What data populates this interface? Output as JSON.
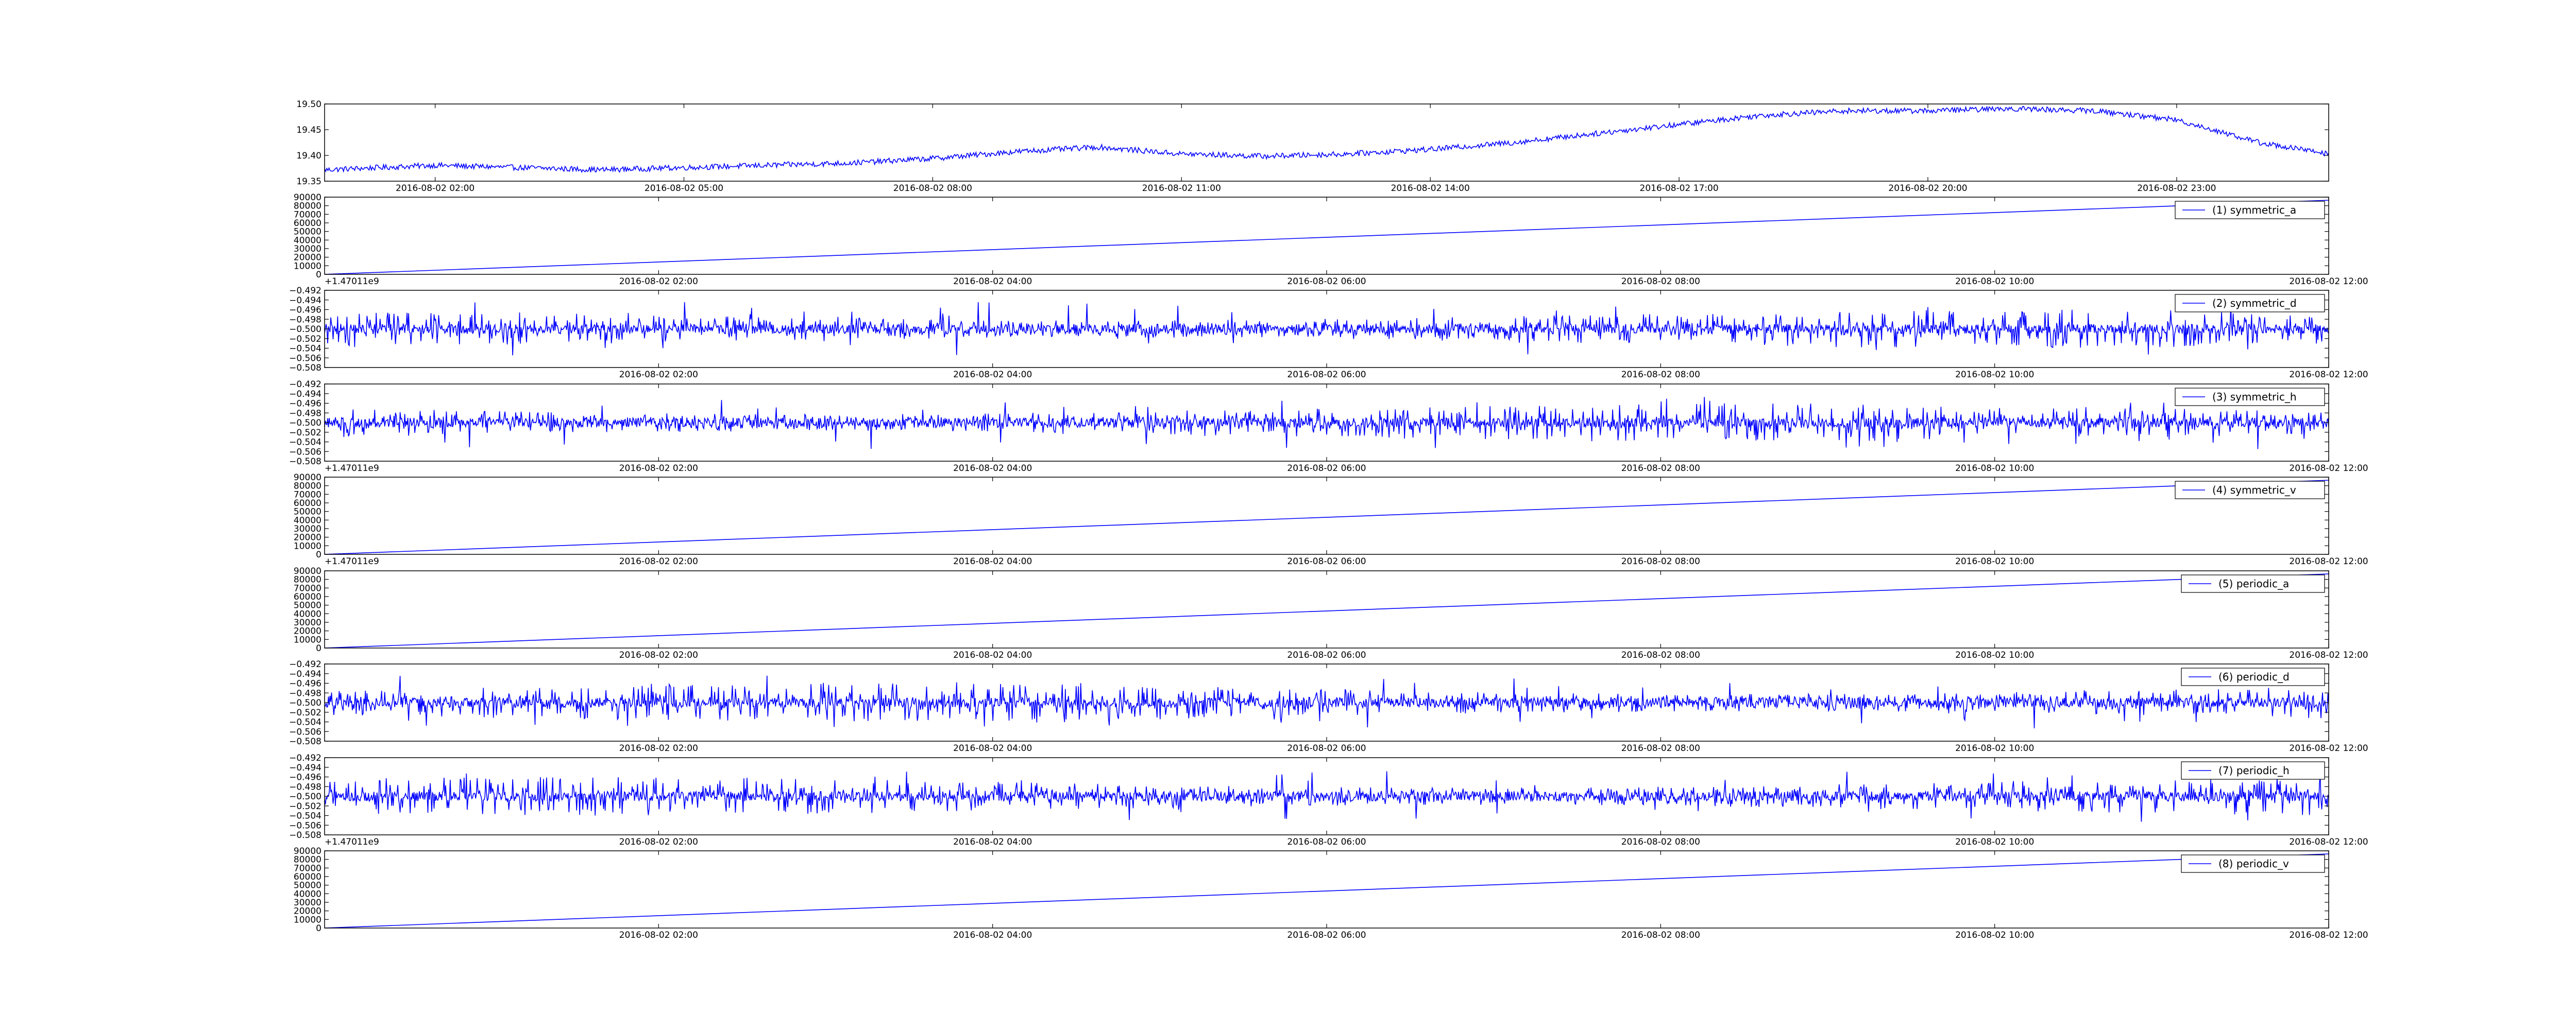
{
  "colors": {
    "line": "#0000ff",
    "axes": "#000000",
    "background": "#ffffff",
    "legend_edge": "#000000"
  },
  "chart_data": [
    {
      "type": "line",
      "x_kind": "datetime",
      "legend": null,
      "legend_position": "none",
      "grid": false,
      "xlim": [
        "2016-08-02T00:40",
        "2016-08-03T00:50"
      ],
      "xticks": [
        "2016-08-02 02:00",
        "2016-08-02 05:00",
        "2016-08-02 08:00",
        "2016-08-02 11:00",
        "2016-08-02 14:00",
        "2016-08-02 17:00",
        "2016-08-02 20:00",
        "2016-08-02 23:00"
      ],
      "ylim": [
        19.345,
        19.515
      ],
      "yticks": [
        "19.35",
        "19.40",
        "19.45",
        "19.50"
      ],
      "offset_label": "",
      "x_bottom_left_label": "",
      "series": [
        {
          "style": "noisy-line",
          "x": [
            "2016-08-02T00:40",
            "2016-08-02T02:00",
            "2016-08-02T03:00",
            "2016-08-02T04:00",
            "2016-08-02T05:00",
            "2016-08-02T06:00",
            "2016-08-02T07:00",
            "2016-08-02T08:00",
            "2016-08-02T09:00",
            "2016-08-02T10:00",
            "2016-08-02T11:00",
            "2016-08-02T12:00",
            "2016-08-02T13:00",
            "2016-08-02T14:00",
            "2016-08-02T15:00",
            "2016-08-02T16:00",
            "2016-08-02T17:00",
            "2016-08-02T18:00",
            "2016-08-02T19:00",
            "2016-08-02T20:00",
            "2016-08-02T21:00",
            "2016-08-02T22:00",
            "2016-08-02T23:00",
            "2016-08-03T00:00",
            "2016-08-03T00:50"
          ],
          "y": [
            19.37,
            19.38,
            19.375,
            19.37,
            19.375,
            19.38,
            19.385,
            19.395,
            19.41,
            19.42,
            19.405,
            19.4,
            19.405,
            19.415,
            19.43,
            19.45,
            19.47,
            19.49,
            19.5,
            19.5,
            19.505,
            19.5,
            19.48,
            19.43,
            19.405
          ],
          "noise": 0.006
        }
      ]
    },
    {
      "type": "line",
      "x_kind": "datetime",
      "legend": "(1) symmetric_a",
      "legend_position": "right",
      "grid": false,
      "xlim": [
        "2016-08-02T00:00",
        "2016-08-02T12:00"
      ],
      "xticks": [
        "2016-08-02 02:00",
        "2016-08-02 04:00",
        "2016-08-02 06:00",
        "2016-08-02 08:00",
        "2016-08-02 10:00",
        "2016-08-02 12:00"
      ],
      "ylim": [
        0,
        90000
      ],
      "yticks": [
        "0",
        "10000",
        "20000",
        "30000",
        "40000",
        "50000",
        "60000",
        "70000",
        "80000",
        "90000"
      ],
      "offset_label": "",
      "x_bottom_left_label": "+1.47011e9",
      "series": [
        {
          "style": "straight",
          "x": [
            "2016-08-02T00:00",
            "2016-08-02T12:00"
          ],
          "y": [
            0,
            86400
          ]
        }
      ]
    },
    {
      "type": "line",
      "x_kind": "datetime",
      "legend": "(2) symmetric_d",
      "legend_position": "right",
      "grid": false,
      "xlim": [
        "2016-08-02T00:00",
        "2016-08-02T12:00"
      ],
      "xticks": [
        "2016-08-02 02:00",
        "2016-08-02 04:00",
        "2016-08-02 06:00",
        "2016-08-02 08:00",
        "2016-08-02 10:00",
        "2016-08-02 12:00"
      ],
      "ylim": [
        -0.508,
        -0.492
      ],
      "yticks": [
        "−0.508",
        "−0.506",
        "−0.504",
        "−0.502",
        "−0.500",
        "−0.498",
        "−0.496",
        "−0.494",
        "−0.492"
      ],
      "offset_label": "",
      "x_bottom_left_label": "",
      "series": [
        {
          "style": "spiky",
          "center": -0.5,
          "amplitude": 0.004
        }
      ]
    },
    {
      "type": "line",
      "x_kind": "datetime",
      "legend": "(3) symmetric_h",
      "legend_position": "right",
      "grid": false,
      "xlim": [
        "2016-08-02T00:00",
        "2016-08-02T12:00"
      ],
      "xticks": [
        "2016-08-02 02:00",
        "2016-08-02 04:00",
        "2016-08-02 06:00",
        "2016-08-02 08:00",
        "2016-08-02 10:00",
        "2016-08-02 12:00"
      ],
      "ylim": [
        -0.508,
        -0.492
      ],
      "yticks": [
        "−0.508",
        "−0.506",
        "−0.504",
        "−0.502",
        "−0.500",
        "−0.498",
        "−0.496",
        "−0.494",
        "−0.492"
      ],
      "offset_label": "",
      "x_bottom_left_label": "+1.47011e9",
      "series": [
        {
          "style": "spiky",
          "center": -0.5,
          "amplitude": 0.004
        }
      ]
    },
    {
      "type": "line",
      "x_kind": "datetime",
      "legend": "(4) symmetric_v",
      "legend_position": "right",
      "grid": false,
      "xlim": [
        "2016-08-02T00:00",
        "2016-08-02T12:00"
      ],
      "xticks": [
        "2016-08-02 02:00",
        "2016-08-02 04:00",
        "2016-08-02 06:00",
        "2016-08-02 08:00",
        "2016-08-02 10:00",
        "2016-08-02 12:00"
      ],
      "ylim": [
        0,
        90000
      ],
      "yticks": [
        "0",
        "10000",
        "20000",
        "30000",
        "40000",
        "50000",
        "60000",
        "70000",
        "80000",
        "90000"
      ],
      "offset_label": "",
      "x_bottom_left_label": "+1.47011e9",
      "series": [
        {
          "style": "straight",
          "x": [
            "2016-08-02T00:00",
            "2016-08-02T12:00"
          ],
          "y": [
            0,
            86400
          ]
        }
      ]
    },
    {
      "type": "line",
      "x_kind": "datetime",
      "legend": "(5) periodic_a",
      "legend_position": "right",
      "grid": false,
      "xlim": [
        "2016-08-02T00:00",
        "2016-08-02T12:00"
      ],
      "xticks": [
        "2016-08-02 02:00",
        "2016-08-02 04:00",
        "2016-08-02 06:00",
        "2016-08-02 08:00",
        "2016-08-02 10:00",
        "2016-08-02 12:00"
      ],
      "ylim": [
        0,
        90000
      ],
      "yticks": [
        "0",
        "10000",
        "20000",
        "30000",
        "40000",
        "50000",
        "60000",
        "70000",
        "80000",
        "90000"
      ],
      "offset_label": "",
      "x_bottom_left_label": "",
      "series": [
        {
          "style": "straight",
          "x": [
            "2016-08-02T00:00",
            "2016-08-02T12:00"
          ],
          "y": [
            0,
            86400
          ]
        }
      ]
    },
    {
      "type": "line",
      "x_kind": "datetime",
      "legend": "(6) periodic_d",
      "legend_position": "right",
      "grid": false,
      "xlim": [
        "2016-08-02T00:00",
        "2016-08-02T12:00"
      ],
      "xticks": [
        "2016-08-02 02:00",
        "2016-08-02 04:00",
        "2016-08-02 06:00",
        "2016-08-02 08:00",
        "2016-08-02 10:00",
        "2016-08-02 12:00"
      ],
      "ylim": [
        -0.508,
        -0.492
      ],
      "yticks": [
        "−0.508",
        "−0.506",
        "−0.504",
        "−0.502",
        "−0.500",
        "−0.498",
        "−0.496",
        "−0.494",
        "−0.492"
      ],
      "offset_label": "",
      "x_bottom_left_label": "",
      "series": [
        {
          "style": "spiky",
          "center": -0.5,
          "amplitude": 0.004
        }
      ]
    },
    {
      "type": "line",
      "x_kind": "datetime",
      "legend": "(7) periodic_h",
      "legend_position": "right",
      "grid": false,
      "xlim": [
        "2016-08-02T00:00",
        "2016-08-02T12:00"
      ],
      "xticks": [
        "2016-08-02 02:00",
        "2016-08-02 04:00",
        "2016-08-02 06:00",
        "2016-08-02 08:00",
        "2016-08-02 10:00",
        "2016-08-02 12:00"
      ],
      "ylim": [
        -0.508,
        -0.492
      ],
      "yticks": [
        "−0.508",
        "−0.506",
        "−0.504",
        "−0.502",
        "−0.500",
        "−0.498",
        "−0.496",
        "−0.494",
        "−0.492"
      ],
      "offset_label": "",
      "x_bottom_left_label": "+1.47011e9",
      "series": [
        {
          "style": "spiky",
          "center": -0.5,
          "amplitude": 0.004
        }
      ]
    },
    {
      "type": "line",
      "x_kind": "datetime",
      "legend": "(8) periodic_v",
      "legend_position": "right",
      "grid": false,
      "xlim": [
        "2016-08-02T00:00",
        "2016-08-02T12:00"
      ],
      "xticks": [
        "2016-08-02 02:00",
        "2016-08-02 04:00",
        "2016-08-02 06:00",
        "2016-08-02 08:00",
        "2016-08-02 10:00",
        "2016-08-02 12:00"
      ],
      "ylim": [
        0,
        90000
      ],
      "yticks": [
        "0",
        "10000",
        "20000",
        "30000",
        "40000",
        "50000",
        "60000",
        "70000",
        "80000",
        "90000"
      ],
      "offset_label": "",
      "x_bottom_left_label": "",
      "series": [
        {
          "style": "straight",
          "x": [
            "2016-08-02T00:00",
            "2016-08-02T12:00"
          ],
          "y": [
            0,
            86400
          ]
        }
      ]
    }
  ]
}
